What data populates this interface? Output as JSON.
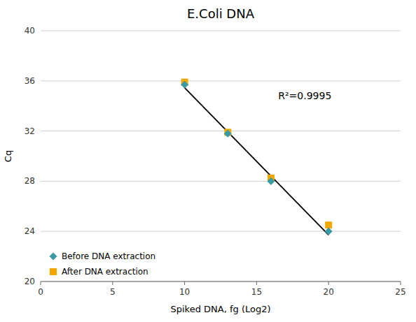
{
  "chart_data": {
    "type": "scatter",
    "title": "E.Coli DNA",
    "x_label": "Spiked DNA, fg (Log2)",
    "y_label": "Cq",
    "xlim": [
      0,
      25
    ],
    "ylim": [
      20,
      40
    ],
    "xticks": [
      0,
      5,
      10,
      15,
      20,
      25
    ],
    "yticks": [
      20,
      24,
      28,
      32,
      36,
      40
    ],
    "grid": true,
    "legend": "lower left",
    "series": [
      {
        "name": "Before DNA extraction",
        "color": "#3a9aa6",
        "marker": "diamond",
        "x": [
          10,
          13,
          16,
          20
        ],
        "values": [
          35.7,
          31.8,
          28.0,
          24.0
        ]
      },
      {
        "name": "After DNA extraction",
        "color": "#f0a800",
        "marker": "square",
        "x": [
          10,
          13,
          16,
          20
        ],
        "values": [
          35.9,
          31.9,
          28.25,
          24.5
        ]
      },
      {
        "type": "line",
        "color": "#000000",
        "line_style": "solid",
        "x": [
          10,
          20
        ],
        "values": [
          35.44703,
          23.71644
        ]
      }
    ],
    "annotations": [
      {
        "text": "R²=0.9995",
        "x": 16.5,
        "y": 34.8
      }
    ]
  }
}
